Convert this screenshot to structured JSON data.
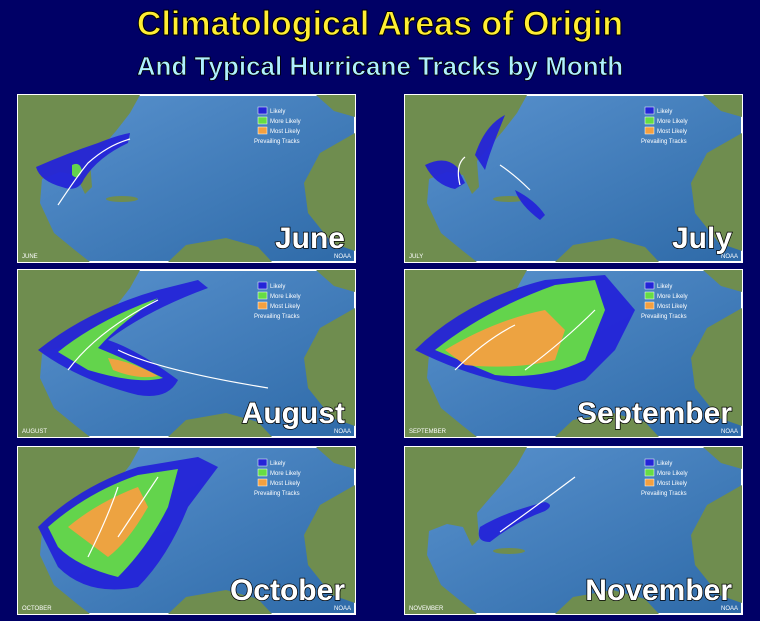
{
  "header": {
    "title": "Climatological Areas of Origin",
    "subtitle": "And Typical Hurricane Tracks by Month"
  },
  "legend": [
    "Likely",
    "More Likely",
    "Most Likely",
    "Prevailing Tracks"
  ],
  "credit": "NOAA",
  "panels": [
    {
      "month": "June",
      "label": "JUNE"
    },
    {
      "month": "July",
      "label": "JULY"
    },
    {
      "month": "August",
      "label": "AUGUST"
    },
    {
      "month": "September",
      "label": "SEPTEMBER"
    },
    {
      "month": "October",
      "label": "OCTOBER"
    },
    {
      "month": "November",
      "label": "NOVEMBER"
    }
  ]
}
